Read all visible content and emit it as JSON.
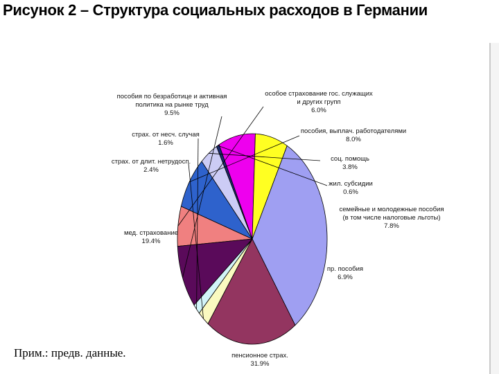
{
  "title": "Рисунок 2 – Структура социальных расходов в Германии",
  "note": "Прим.: предв. данные.",
  "chart_data": {
    "type": "pie",
    "title": "Рисунок 2 – Структура социальных расходов в Германии",
    "slices": [
      {
        "label_lines": [
          "особое страхование гос. служащих",
          "и других групп"
        ],
        "value_text": "6.0%",
        "value": 6.0,
        "color": "#f08080"
      },
      {
        "label_lines": [
          "пособия, выплач. работодателями"
        ],
        "value_text": "8.0%",
        "value": 8.0,
        "color": "#2e62cc"
      },
      {
        "label_lines": [
          "соц. помощь"
        ],
        "value_text": "3.8%",
        "value": 3.8,
        "color": "#ccccf5"
      },
      {
        "label_lines": [
          "жил. субсидии"
        ],
        "value_text": "0.6%",
        "value": 0.6,
        "color": "#1a2a6c"
      },
      {
        "label_lines": [
          "семейные и молодежные пособия",
          "(в том числе налоговые льготы)"
        ],
        "value_text": "7.8%",
        "value": 7.8,
        "color": "#ee00ee"
      },
      {
        "label_lines": [
          "пр. пособия"
        ],
        "value_text": "6.9%",
        "value": 6.9,
        "color": "#ffff22"
      },
      {
        "label_lines": [
          "пенсионное страх."
        ],
        "value_text": "31.9%",
        "value": 31.9,
        "color": "#9f9ff2"
      },
      {
        "label_lines": [
          "мед. страхование"
        ],
        "value_text": "19.4%",
        "value": 19.4,
        "color": "#933560"
      },
      {
        "label_lines": [
          "страх. от длит. нетрудосп."
        ],
        "value_text": "2.4%",
        "value": 2.4,
        "color": "#fafac0"
      },
      {
        "label_lines": [
          "страх. от несч. случая"
        ],
        "value_text": "1.6%",
        "value": 1.6,
        "color": "#d2f4f8"
      },
      {
        "label_lines": [
          "пособия по безработице и активная",
          "политика на рынке труд"
        ],
        "value_text": "9.5%",
        "value": 9.5,
        "color": "#5a0a5a"
      }
    ]
  }
}
